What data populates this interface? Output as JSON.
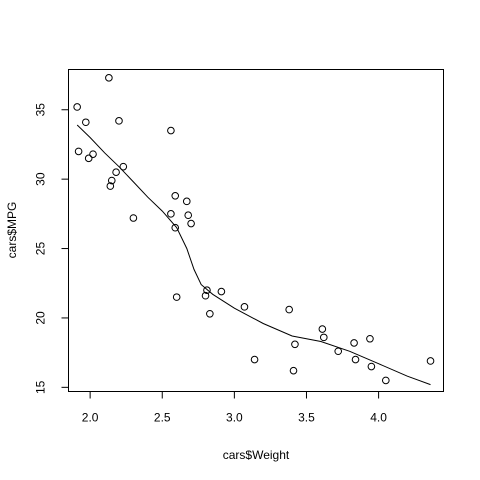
{
  "chart_data": {
    "type": "scatter",
    "xlabel": "cars$Weight",
    "ylabel": "cars$MPG",
    "xlim": [
      1.85,
      4.45
    ],
    "ylim": [
      14.7,
      37.9
    ],
    "xticks": [
      2.0,
      2.5,
      3.0,
      3.5,
      4.0
    ],
    "xtick_labels": [
      "2.0",
      "2.5",
      "3.0",
      "3.5",
      "4.0"
    ],
    "yticks": [
      15,
      20,
      25,
      30,
      35
    ],
    "ytick_labels": [
      "15",
      "20",
      "25",
      "30",
      "35"
    ],
    "points": [
      {
        "x": 1.91,
        "y": 35.2
      },
      {
        "x": 1.92,
        "y": 32.0
      },
      {
        "x": 1.97,
        "y": 34.1
      },
      {
        "x": 1.99,
        "y": 31.5
      },
      {
        "x": 2.02,
        "y": 31.8
      },
      {
        "x": 2.13,
        "y": 37.3
      },
      {
        "x": 2.14,
        "y": 29.5
      },
      {
        "x": 2.15,
        "y": 29.9
      },
      {
        "x": 2.18,
        "y": 30.5
      },
      {
        "x": 2.2,
        "y": 34.2
      },
      {
        "x": 2.23,
        "y": 30.9
      },
      {
        "x": 2.3,
        "y": 27.2
      },
      {
        "x": 2.56,
        "y": 33.5
      },
      {
        "x": 2.56,
        "y": 27.5
      },
      {
        "x": 2.59,
        "y": 26.5
      },
      {
        "x": 2.59,
        "y": 28.8
      },
      {
        "x": 2.6,
        "y": 21.5
      },
      {
        "x": 2.67,
        "y": 28.4
      },
      {
        "x": 2.68,
        "y": 27.4
      },
      {
        "x": 2.7,
        "y": 26.8
      },
      {
        "x": 2.8,
        "y": 21.6
      },
      {
        "x": 2.81,
        "y": 22.0
      },
      {
        "x": 2.83,
        "y": 20.3
      },
      {
        "x": 2.91,
        "y": 21.9
      },
      {
        "x": 3.07,
        "y": 20.8
      },
      {
        "x": 3.14,
        "y": 17.0
      },
      {
        "x": 3.38,
        "y": 20.6
      },
      {
        "x": 3.41,
        "y": 16.2
      },
      {
        "x": 3.42,
        "y": 18.1
      },
      {
        "x": 3.61,
        "y": 19.2
      },
      {
        "x": 3.62,
        "y": 18.6
      },
      {
        "x": 3.72,
        "y": 17.6
      },
      {
        "x": 3.83,
        "y": 18.2
      },
      {
        "x": 3.84,
        "y": 17.0
      },
      {
        "x": 3.94,
        "y": 18.5
      },
      {
        "x": 3.95,
        "y": 16.5
      },
      {
        "x": 4.05,
        "y": 15.5
      },
      {
        "x": 4.36,
        "y": 16.9
      }
    ],
    "smooth_line": [
      {
        "x": 1.91,
        "y": 33.9
      },
      {
        "x": 2.0,
        "y": 33.0
      },
      {
        "x": 2.1,
        "y": 31.9
      },
      {
        "x": 2.2,
        "y": 30.9
      },
      {
        "x": 2.3,
        "y": 29.8
      },
      {
        "x": 2.4,
        "y": 28.7
      },
      {
        "x": 2.5,
        "y": 27.7
      },
      {
        "x": 2.6,
        "y": 26.5
      },
      {
        "x": 2.67,
        "y": 25.0
      },
      {
        "x": 2.72,
        "y": 23.5
      },
      {
        "x": 2.77,
        "y": 22.4
      },
      {
        "x": 2.85,
        "y": 21.7
      },
      {
        "x": 3.0,
        "y": 20.7
      },
      {
        "x": 3.2,
        "y": 19.6
      },
      {
        "x": 3.4,
        "y": 18.7
      },
      {
        "x": 3.6,
        "y": 18.3
      },
      {
        "x": 3.8,
        "y": 17.6
      },
      {
        "x": 4.0,
        "y": 16.7
      },
      {
        "x": 4.2,
        "y": 15.8
      },
      {
        "x": 4.36,
        "y": 15.2
      }
    ]
  }
}
